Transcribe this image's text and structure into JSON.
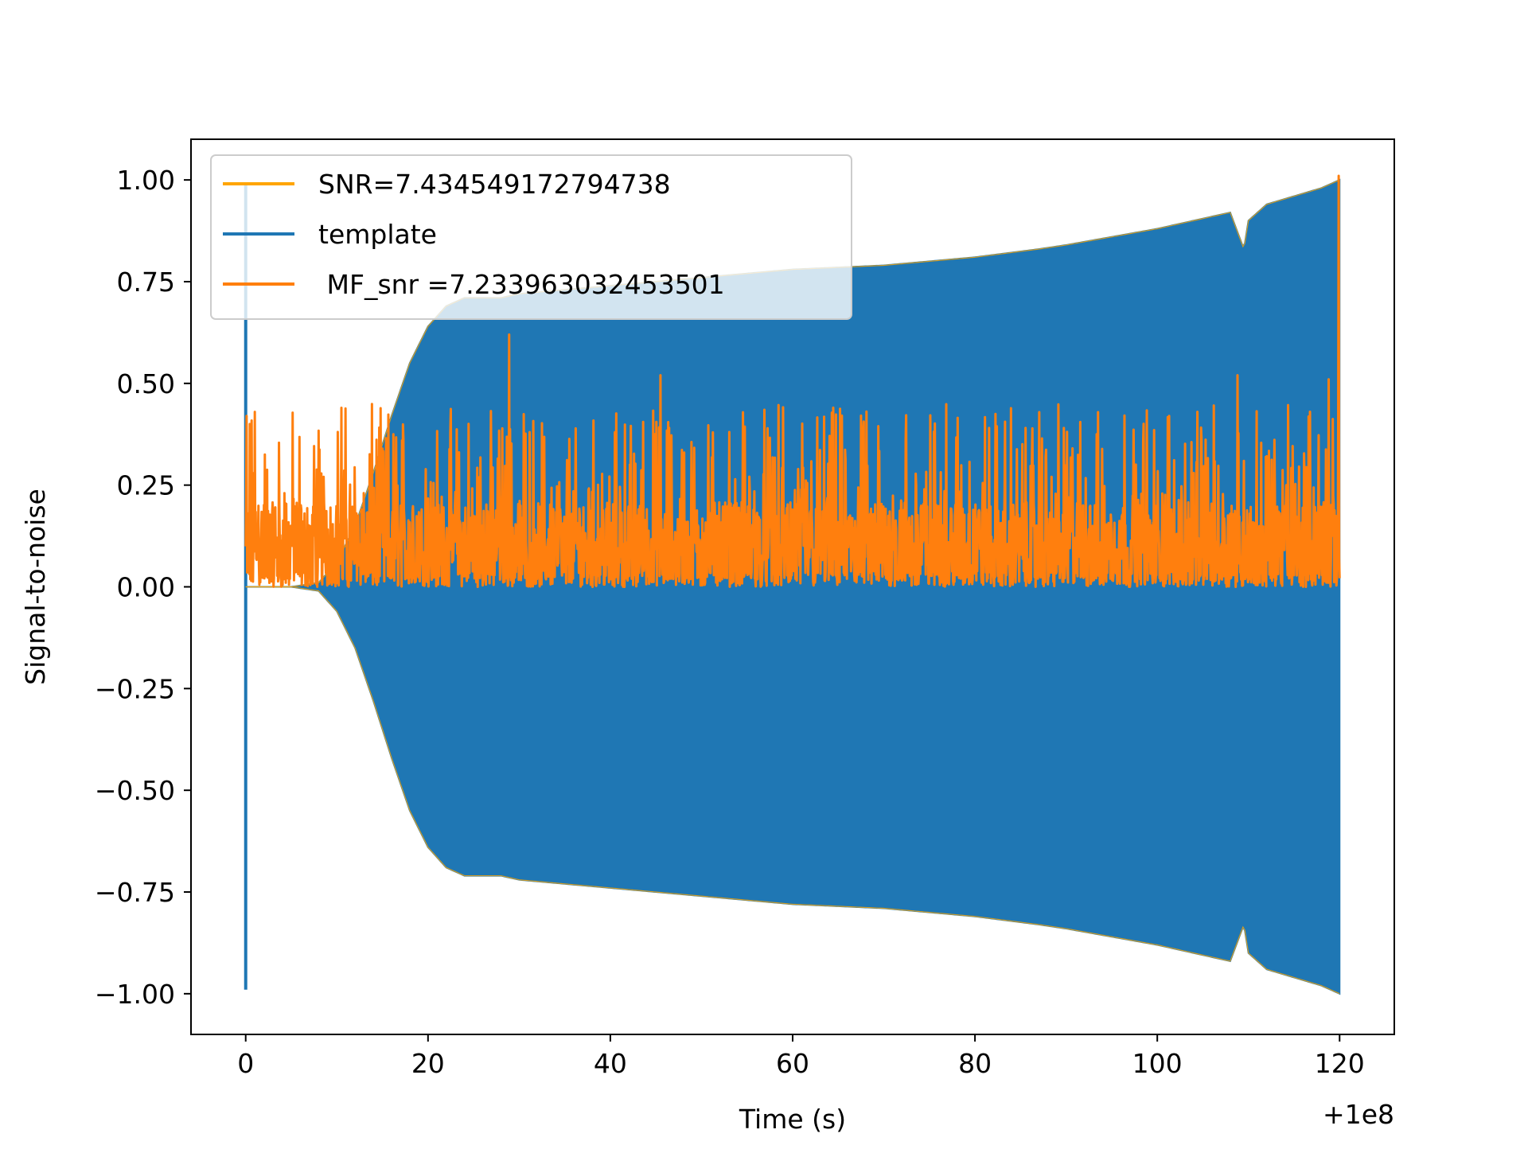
{
  "chart_data": {
    "type": "line",
    "title": "",
    "xlabel": "Time (s)",
    "ylabel": "Signal-to-noise",
    "x_offset_label": "+1e8",
    "xlim": [
      -6,
      126
    ],
    "ylim": [
      -1.1,
      1.1
    ],
    "x_ticks": [
      0,
      20,
      40,
      60,
      80,
      100,
      120
    ],
    "x_tick_labels": [
      "0",
      "20",
      "40",
      "60",
      "80",
      "100",
      "120"
    ],
    "y_ticks": [
      -1.0,
      -0.75,
      -0.5,
      -0.25,
      0.0,
      0.25,
      0.5,
      0.75,
      1.0
    ],
    "y_tick_labels": [
      "−1.00",
      "−0.75",
      "−0.50",
      "−0.25",
      "0.00",
      "0.25",
      "0.50",
      "0.75",
      "1.00"
    ],
    "grid": false,
    "legend": {
      "placement": "upper-left",
      "entries": [
        {
          "label": "SNR=7.434549172794738",
          "color": "#ffa500"
        },
        {
          "label": "template",
          "color": "#1f77b4"
        },
        {
          "label": " MF_snr =7.233963032453501",
          "color": "#ff7f0e"
        }
      ]
    },
    "series": [
      {
        "name": "template",
        "color": "#1f77b4",
        "kind": "oscillating-envelope",
        "x": [
          0,
          2,
          5,
          8,
          10,
          12,
          14,
          16,
          18,
          20,
          22,
          24,
          26,
          28,
          30,
          40,
          50,
          60,
          70,
          80,
          87,
          90,
          100,
          108,
          109.5,
          110,
          112,
          115,
          118,
          120
        ],
        "upper": [
          0.0,
          0.0,
          0.0,
          0.01,
          0.06,
          0.15,
          0.28,
          0.42,
          0.55,
          0.64,
          0.69,
          0.71,
          0.71,
          0.71,
          0.72,
          0.74,
          0.76,
          0.78,
          0.79,
          0.81,
          0.83,
          0.84,
          0.88,
          0.92,
          0.83,
          0.9,
          0.94,
          0.96,
          0.98,
          1.0
        ],
        "lower": [
          0.0,
          0.0,
          0.0,
          -0.01,
          -0.06,
          -0.15,
          -0.28,
          -0.42,
          -0.55,
          -0.64,
          -0.69,
          -0.71,
          -0.71,
          -0.71,
          -0.72,
          -0.74,
          -0.76,
          -0.78,
          -0.79,
          -0.81,
          -0.83,
          -0.84,
          -0.88,
          -0.92,
          -0.83,
          -0.9,
          -0.94,
          -0.96,
          -0.98,
          -1.0
        ],
        "spike": {
          "x": 0.0,
          "min": -0.99,
          "max": 0.99
        }
      },
      {
        "name": "SNR=7.434549172794738",
        "color": "#ffa500",
        "kind": "envelope-outline",
        "x": [
          0,
          2,
          5,
          8,
          10,
          12,
          14,
          16,
          18,
          20,
          22,
          24,
          26,
          28,
          30,
          40,
          50,
          60,
          70,
          80,
          87,
          90,
          100,
          108,
          109.5,
          110,
          112,
          115,
          118,
          120
        ],
        "upper": [
          0.0,
          0.0,
          0.0,
          0.01,
          0.06,
          0.15,
          0.28,
          0.42,
          0.55,
          0.64,
          0.69,
          0.71,
          0.71,
          0.71,
          0.72,
          0.74,
          0.76,
          0.78,
          0.79,
          0.81,
          0.83,
          0.84,
          0.88,
          0.92,
          0.83,
          0.9,
          0.94,
          0.96,
          0.98,
          1.0
        ],
        "lower": [
          0.0,
          0.0,
          0.0,
          -0.01,
          -0.06,
          -0.15,
          -0.28,
          -0.42,
          -0.55,
          -0.64,
          -0.69,
          -0.71,
          -0.71,
          -0.71,
          -0.72,
          -0.74,
          -0.76,
          -0.78,
          -0.79,
          -0.81,
          -0.83,
          -0.84,
          -0.88,
          -0.92,
          -0.83,
          -0.9,
          -0.94,
          -0.96,
          -0.98,
          -1.0
        ]
      },
      {
        "name": " MF_snr =7.233963032453501",
        "color": "#ff7f0e",
        "kind": "noise",
        "x_range": [
          0,
          120
        ],
        "baseline": 0.13,
        "min": 0.0,
        "typical_max": 0.45,
        "peaks": [
          {
            "x": 0.1,
            "y": 0.42
          },
          {
            "x": 1.0,
            "y": 0.43
          },
          {
            "x": 10.5,
            "y": 0.44
          },
          {
            "x": 28.9,
            "y": 0.62
          },
          {
            "x": 45.5,
            "y": 0.52
          },
          {
            "x": 108.8,
            "y": 0.52
          },
          {
            "x": 118.8,
            "y": 0.51
          },
          {
            "x": 119.9,
            "y": 1.01
          }
        ]
      }
    ]
  }
}
